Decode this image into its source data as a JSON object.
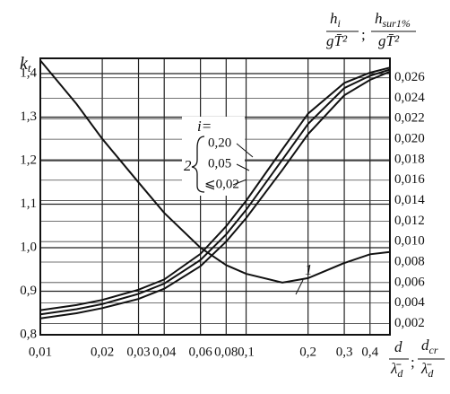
{
  "chart_data": {
    "type": "line",
    "x_scale": "log",
    "grid": true,
    "y_label": {
      "main": "k",
      "sub": "t"
    },
    "y2_label": {
      "num1": "h",
      "num1_sub": "i",
      "den1": "gT̄²",
      "sep": ";",
      "num2": "h",
      "num2_sub": "sur1%",
      "den2": "gT̄²"
    },
    "x_label": {
      "num1": "d",
      "den1": "λ̄",
      "den1_sub": "d",
      "sep": ";",
      "num2": "d",
      "num2_sub": "cr",
      "den2": "λ̄",
      "den2_sub": "d"
    },
    "annotations": {
      "i": "i=",
      "curve2": "2"
    },
    "xlim": [
      0.01,
      0.5
    ],
    "xticks": [
      {
        "value": 0.01,
        "label": "0,01"
      },
      {
        "value": 0.02,
        "label": "0,02"
      },
      {
        "value": 0.03,
        "label": "0,03"
      },
      {
        "value": 0.04,
        "label": "0,04"
      },
      {
        "value": 0.06,
        "label": "0,06"
      },
      {
        "value": 0.08,
        "label": "0,08"
      },
      {
        "value": 0.1,
        "label": "0,1"
      },
      {
        "value": 0.2,
        "label": "0,2"
      },
      {
        "value": 0.3,
        "label": "0,3"
      },
      {
        "value": 0.4,
        "label": "0,4"
      }
    ],
    "ylim": [
      0.8,
      1.435
    ],
    "yticks": [
      {
        "value": 0.8,
        "label": "0,8"
      },
      {
        "value": 0.9,
        "label": "0,9"
      },
      {
        "value": 1.0,
        "label": "1,0"
      },
      {
        "value": 1.1,
        "label": "1,1"
      },
      {
        "value": 1.2,
        "label": "1,2"
      },
      {
        "value": 1.3,
        "label": "1,3"
      },
      {
        "value": 1.4,
        "label": "1,4"
      }
    ],
    "y2lim": [
      0.0009,
      0.0279
    ],
    "y2ticks": [
      {
        "value": 0.002,
        "label": "0,002"
      },
      {
        "value": 0.004,
        "label": "0,004"
      },
      {
        "value": 0.006,
        "label": "0,006"
      },
      {
        "value": 0.008,
        "label": "0,008"
      },
      {
        "value": 0.01,
        "label": "0,010"
      },
      {
        "value": 0.012,
        "label": "0,012"
      },
      {
        "value": 0.014,
        "label": "0,014"
      },
      {
        "value": 0.016,
        "label": "0,016"
      },
      {
        "value": 0.018,
        "label": "0,018"
      },
      {
        "value": 0.02,
        "label": "0,020"
      },
      {
        "value": 0.022,
        "label": "0,022"
      },
      {
        "value": 0.024,
        "label": "0,024"
      },
      {
        "value": 0.026,
        "label": "0,026"
      }
    ],
    "x": [
      0.01,
      0.015,
      0.02,
      0.03,
      0.04,
      0.06,
      0.08,
      0.1,
      0.15,
      0.2,
      0.3,
      0.4,
      0.5
    ],
    "series": [
      {
        "name": "1",
        "color": "#111111",
        "axis": "y",
        "values": [
          1.43,
          1.33,
          1.25,
          1.15,
          1.08,
          1.0,
          0.96,
          0.94,
          0.92,
          0.93,
          0.965,
          0.985,
          0.99
        ]
      },
      {
        "name": "0,20",
        "color": "#111111",
        "axis": "y2",
        "values": [
          0.0033,
          0.0038,
          0.0043,
          0.0053,
          0.0063,
          0.0088,
          0.0115,
          0.014,
          0.019,
          0.0225,
          0.0255,
          0.0265,
          0.027
        ]
      },
      {
        "name": "0,05",
        "color": "#111111",
        "axis": "y2",
        "values": [
          0.0029,
          0.0034,
          0.0039,
          0.0049,
          0.0059,
          0.0082,
          0.0107,
          0.0131,
          0.018,
          0.0215,
          0.025,
          0.0262,
          0.0268
        ]
      },
      {
        "name": "⩽0,02",
        "color": "#111111",
        "axis": "y2",
        "values": [
          0.0025,
          0.003,
          0.0035,
          0.0044,
          0.0054,
          0.0076,
          0.01,
          0.0123,
          0.017,
          0.0205,
          0.0243,
          0.0258,
          0.0266
        ]
      }
    ]
  }
}
